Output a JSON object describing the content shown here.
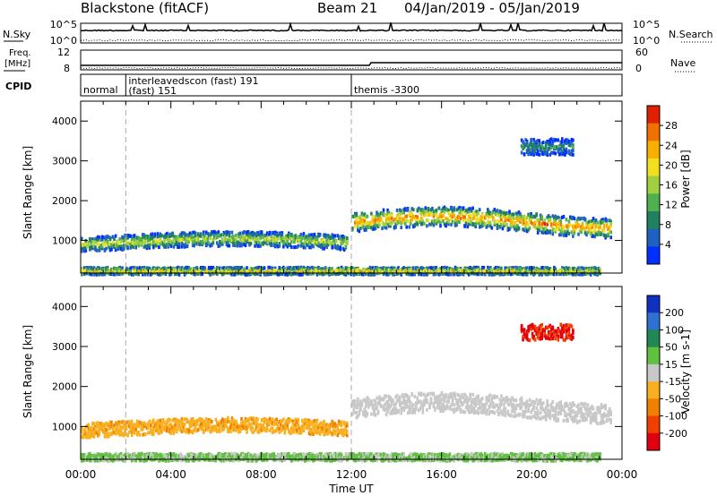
{
  "header": {
    "station": "Blackstone (fitACF)",
    "beam": "Beam 21",
    "date_range": "04/Jan/2019 - 05/Jan/2019"
  },
  "top_panels": {
    "nsky_label": "N.Sky",
    "nsky_ticks": [
      "10^5",
      "10^0"
    ],
    "nsearch_label": "N.Search",
    "nsearch_ticks": [
      "10^5",
      "10^0"
    ],
    "freq_label_1": "Freq.",
    "freq_label_2": "[MHz]",
    "freq_ticks": [
      "12",
      "8"
    ],
    "nave_label": "Nave",
    "nave_ticks": [
      "60",
      "0"
    ],
    "cpid_label": "CPID",
    "cpid_segments": [
      {
        "label": "normal",
        "sublabel": "",
        "start_hour": 0.0
      },
      {
        "label": "interleavedscon (fast) 191",
        "sublabel": "(fast) 151",
        "start_hour": 2.0
      },
      {
        "label": "themis -3300",
        "sublabel": "",
        "start_hour": 12.0
      }
    ]
  },
  "chart_data": [
    {
      "type": "heatmap",
      "title": "Power",
      "ylabel": "Slant Range [km]",
      "xlabel": "",
      "colorbar_label": "Power [dB]",
      "colorbar_ticks": [
        "28",
        "24",
        "20",
        "16",
        "12",
        "8",
        "4"
      ],
      "yticks": [
        "4000",
        "3000",
        "2000",
        "1000"
      ],
      "xlim_hours": [
        0,
        24
      ],
      "ylim_km": [
        180,
        4500
      ],
      "colors": [
        "#0030ff",
        "#2060c0",
        "#208060",
        "#50b050",
        "#a0d040",
        "#f0e020",
        "#f8b000",
        "#f07000",
        "#e02000"
      ],
      "regions": [
        {
          "name": "near-range band",
          "t_start": 0.0,
          "t_end": 23.0,
          "range_km": 230,
          "width_km": 90,
          "power_db": 22
        },
        {
          "name": "morning echo",
          "t_start": 0.0,
          "t_end": 11.8,
          "range_km": 950,
          "width_km": 180,
          "power_db": 18
        },
        {
          "name": "afternoon echo",
          "t_start": 12.0,
          "t_end": 23.5,
          "range_km": 1450,
          "width_km": 240,
          "power_db": 26
        },
        {
          "name": "far echo",
          "t_start": 19.5,
          "t_end": 21.8,
          "range_km": 3350,
          "width_km": 200,
          "power_db": 10
        }
      ]
    },
    {
      "type": "heatmap",
      "title": "Velocity",
      "ylabel": "Slant Range [km]",
      "xlabel": "Time UT",
      "colorbar_label": "Velocity [m s-1]",
      "colorbar_ticks": [
        "200",
        "100",
        "50",
        "15",
        "-15",
        "-50",
        "-100",
        "-200"
      ],
      "xticks": [
        "00:00",
        "04:00",
        "08:00",
        "12:00",
        "16:00",
        "20:00",
        "00:00"
      ],
      "yticks": [
        "4000",
        "3000",
        "2000",
        "1000"
      ],
      "xlim_hours": [
        0,
        24
      ],
      "ylim_km": [
        180,
        4500
      ],
      "colors": [
        "#1030c0",
        "#3070d0",
        "#208850",
        "#60c040",
        "#c8c8c8",
        "#f8b020",
        "#f08000",
        "#f04000",
        "#e00010"
      ],
      "regions": [
        {
          "name": "near-range band",
          "t_start": 0.0,
          "t_end": 23.0,
          "range_km": 230,
          "width_km": 90,
          "velocity": 20
        },
        {
          "name": "morning echo",
          "t_start": 0.0,
          "t_end": 11.8,
          "range_km": 950,
          "width_km": 180,
          "velocity": -40
        },
        {
          "name": "afternoon echo",
          "t_start": 12.0,
          "t_end": 23.5,
          "range_km": 1450,
          "width_km": 240,
          "velocity": 0
        },
        {
          "name": "far echo",
          "t_start": 19.5,
          "t_end": 21.8,
          "range_km": 3350,
          "width_km": 200,
          "velocity": -200
        }
      ]
    }
  ]
}
